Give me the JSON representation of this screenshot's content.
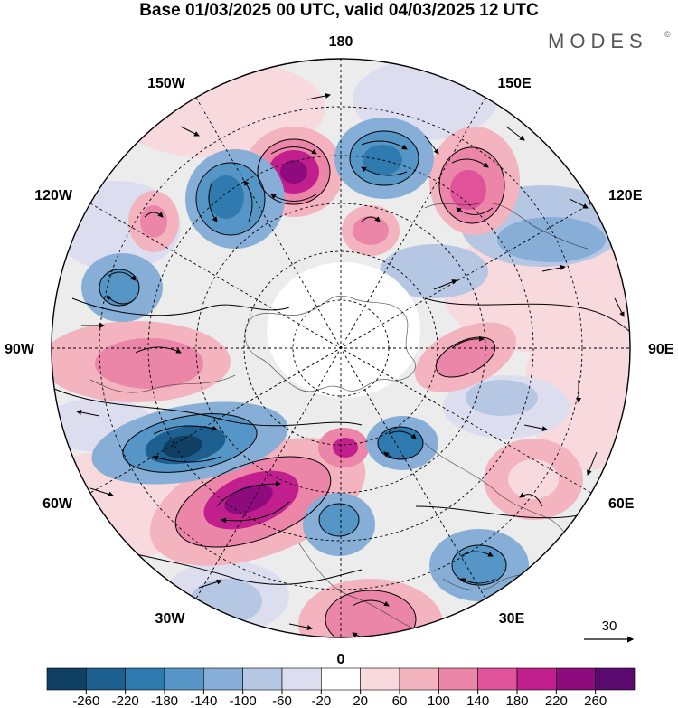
{
  "header": {
    "title": "Base 01/03/2025 00 UTC, valid 04/03/2025 12 UTC"
  },
  "brand": {
    "name": "MODES",
    "mark": "©"
  },
  "map": {
    "longitude_labels": {
      "top": "180",
      "bottom": "0",
      "left": "90W",
      "right": "90E",
      "upper_left": "150W",
      "upper_right": "150E",
      "mid_left_upper": "120W",
      "mid_right_upper": "120E",
      "mid_left_lower": "60W",
      "mid_right_lower": "60E",
      "lower_left": "30W",
      "lower_right": "30E"
    },
    "reference_vector": {
      "label": "30"
    }
  },
  "colorbar": {
    "ticks": [
      "-260",
      "-220",
      "-180",
      "-140",
      "-100",
      "-60",
      "-20",
      "20",
      "60",
      "100",
      "140",
      "180",
      "220",
      "260"
    ],
    "colors": [
      "#0f3f63",
      "#1d5f8e",
      "#2f7bb0",
      "#5596c6",
      "#86aed6",
      "#b6c7e3",
      "#dcdef0",
      "#ffffff",
      "#f8d9dd",
      "#f3b3bf",
      "#ec86a8",
      "#e0529a",
      "#c21f8e",
      "#8e0b7e",
      "#5a0a6f"
    ]
  }
}
